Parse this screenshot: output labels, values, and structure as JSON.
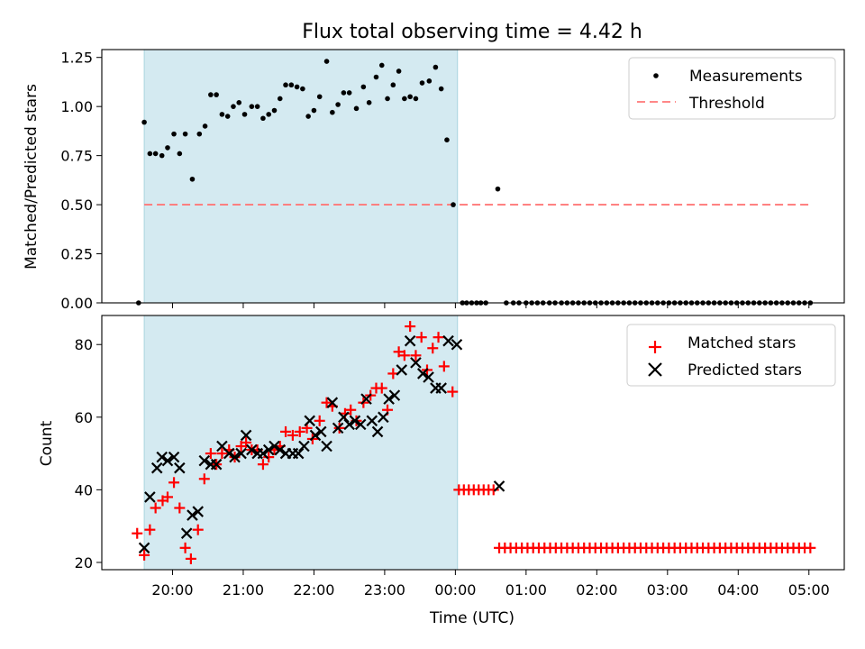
{
  "chart_data": {
    "type": "scatter",
    "title": "Flux total observing time = 4.42 h",
    "xlabel": "Time (UTC)",
    "x_tick_labels": [
      "20:00",
      "21:00",
      "22:00",
      "23:00",
      "00:00",
      "01:00",
      "02:00",
      "03:00",
      "04:00",
      "05:00"
    ],
    "x_tick_hours": [
      20,
      21,
      22,
      23,
      24,
      25,
      26,
      27,
      28,
      29
    ],
    "xlim_hours": [
      19.0,
      29.5
    ],
    "observing_window_hours": [
      19.6,
      24.03
    ],
    "colors": {
      "window": "#d4eaf1",
      "window_edge": "#a9d4df",
      "threshold": "#ff7777",
      "matched": "#ff0000",
      "predicted": "#000000",
      "measurement": "#000000"
    },
    "top_panel": {
      "ylabel": "Matched/Predicted stars",
      "ylim": [
        0,
        1.29
      ],
      "y_ticks": [
        0.0,
        0.25,
        0.5,
        0.75,
        1.0,
        1.25
      ],
      "y_tick_labels": [
        "0.00",
        "0.25",
        "0.50",
        "0.75",
        "1.00",
        "1.25"
      ],
      "threshold": 0.5,
      "threshold_x_hours": [
        19.6,
        29.05
      ],
      "legend": {
        "location": "upper right",
        "measurements": "Measurements",
        "threshold": "Threshold"
      },
      "measurements": [
        [
          19.52,
          0.0
        ],
        [
          19.6,
          0.92
        ],
        [
          19.68,
          0.76
        ],
        [
          19.76,
          0.76
        ],
        [
          19.85,
          0.75
        ],
        [
          19.93,
          0.79
        ],
        [
          20.02,
          0.86
        ],
        [
          20.1,
          0.76
        ],
        [
          20.18,
          0.86
        ],
        [
          20.28,
          0.63
        ],
        [
          20.38,
          0.86
        ],
        [
          20.46,
          0.9
        ],
        [
          20.54,
          1.06
        ],
        [
          20.62,
          1.06
        ],
        [
          20.7,
          0.96
        ],
        [
          20.78,
          0.95
        ],
        [
          20.86,
          1.0
        ],
        [
          20.94,
          1.02
        ],
        [
          21.02,
          0.96
        ],
        [
          21.12,
          1.0
        ],
        [
          21.2,
          1.0
        ],
        [
          21.28,
          0.94
        ],
        [
          21.36,
          0.96
        ],
        [
          21.44,
          0.98
        ],
        [
          21.52,
          1.04
        ],
        [
          21.6,
          1.11
        ],
        [
          21.68,
          1.11
        ],
        [
          21.76,
          1.1
        ],
        [
          21.84,
          1.09
        ],
        [
          21.92,
          0.95
        ],
        [
          22.0,
          0.98
        ],
        [
          22.08,
          1.05
        ],
        [
          22.18,
          1.23
        ],
        [
          22.26,
          0.97
        ],
        [
          22.34,
          1.01
        ],
        [
          22.42,
          1.07
        ],
        [
          22.5,
          1.07
        ],
        [
          22.6,
          0.99
        ],
        [
          22.7,
          1.1
        ],
        [
          22.78,
          1.02
        ],
        [
          22.88,
          1.15
        ],
        [
          22.96,
          1.21
        ],
        [
          23.04,
          1.04
        ],
        [
          23.12,
          1.11
        ],
        [
          23.2,
          1.18
        ],
        [
          23.28,
          1.04
        ],
        [
          23.36,
          1.05
        ],
        [
          23.44,
          1.04
        ],
        [
          23.53,
          1.12
        ],
        [
          23.63,
          1.13
        ],
        [
          23.72,
          1.2
        ],
        [
          23.8,
          1.09
        ],
        [
          23.88,
          0.83
        ],
        [
          23.97,
          0.5
        ],
        [
          24.1,
          0.0
        ],
        [
          24.16,
          0.0
        ],
        [
          24.23,
          0.0
        ],
        [
          24.3,
          0.0
        ],
        [
          24.36,
          0.0
        ],
        [
          24.43,
          0.0
        ],
        [
          24.6,
          0.58
        ],
        [
          24.72,
          0.0
        ],
        [
          24.82,
          0.0
        ],
        [
          24.9,
          0.0
        ],
        [
          25.0,
          0.0
        ],
        [
          25.08,
          0.0
        ],
        [
          25.16,
          0.0
        ],
        [
          25.24,
          0.0
        ],
        [
          25.33,
          0.0
        ],
        [
          25.41,
          0.0
        ],
        [
          25.5,
          0.0
        ],
        [
          25.58,
          0.0
        ],
        [
          25.66,
          0.0
        ],
        [
          25.74,
          0.0
        ],
        [
          25.82,
          0.0
        ],
        [
          25.9,
          0.0
        ],
        [
          25.98,
          0.0
        ],
        [
          26.06,
          0.0
        ],
        [
          26.14,
          0.0
        ],
        [
          26.22,
          0.0
        ],
        [
          26.3,
          0.0
        ],
        [
          26.38,
          0.0
        ],
        [
          26.46,
          0.0
        ],
        [
          26.54,
          0.0
        ],
        [
          26.62,
          0.0
        ],
        [
          26.7,
          0.0
        ],
        [
          26.78,
          0.0
        ],
        [
          26.86,
          0.0
        ],
        [
          26.94,
          0.0
        ],
        [
          27.02,
          0.0
        ],
        [
          27.1,
          0.0
        ],
        [
          27.18,
          0.0
        ],
        [
          27.26,
          0.0
        ],
        [
          27.34,
          0.0
        ],
        [
          27.42,
          0.0
        ],
        [
          27.5,
          0.0
        ],
        [
          27.58,
          0.0
        ],
        [
          27.66,
          0.0
        ],
        [
          27.74,
          0.0
        ],
        [
          27.82,
          0.0
        ],
        [
          27.9,
          0.0
        ],
        [
          27.98,
          0.0
        ],
        [
          28.06,
          0.0
        ],
        [
          28.14,
          0.0
        ],
        [
          28.22,
          0.0
        ],
        [
          28.3,
          0.0
        ],
        [
          28.38,
          0.0
        ],
        [
          28.46,
          0.0
        ],
        [
          28.54,
          0.0
        ],
        [
          28.62,
          0.0
        ],
        [
          28.7,
          0.0
        ],
        [
          28.78,
          0.0
        ],
        [
          28.86,
          0.0
        ],
        [
          28.94,
          0.0
        ],
        [
          29.02,
          0.0
        ]
      ]
    },
    "bottom_panel": {
      "ylabel": "Count",
      "ylim": [
        18,
        88
      ],
      "y_ticks": [
        20,
        40,
        60,
        80
      ],
      "y_tick_labels": [
        "20",
        "40",
        "60",
        "80"
      ],
      "legend": {
        "location": "upper right",
        "matched": "Matched stars",
        "predicted": "Predicted stars"
      },
      "matched": [
        [
          19.5,
          28
        ],
        [
          19.6,
          22
        ],
        [
          19.68,
          29
        ],
        [
          19.76,
          35
        ],
        [
          19.86,
          37
        ],
        [
          19.93,
          38
        ],
        [
          20.02,
          42
        ],
        [
          20.1,
          35
        ],
        [
          20.18,
          24
        ],
        [
          20.26,
          21
        ],
        [
          20.36,
          29
        ],
        [
          20.45,
          43
        ],
        [
          20.54,
          50
        ],
        [
          20.62,
          47
        ],
        [
          20.7,
          50
        ],
        [
          20.8,
          51
        ],
        [
          20.88,
          49
        ],
        [
          20.97,
          52
        ],
        [
          21.04,
          53
        ],
        [
          21.12,
          51
        ],
        [
          21.2,
          51
        ],
        [
          21.28,
          47
        ],
        [
          21.36,
          49
        ],
        [
          21.44,
          51
        ],
        [
          21.52,
          52
        ],
        [
          21.6,
          56
        ],
        [
          21.7,
          55
        ],
        [
          21.8,
          56
        ],
        [
          21.9,
          57
        ],
        [
          21.98,
          54
        ],
        [
          22.08,
          59
        ],
        [
          22.18,
          64
        ],
        [
          22.26,
          63
        ],
        [
          22.36,
          57
        ],
        [
          22.44,
          61
        ],
        [
          22.52,
          62
        ],
        [
          22.6,
          59
        ],
        [
          22.7,
          64
        ],
        [
          22.8,
          66
        ],
        [
          22.88,
          68
        ],
        [
          22.96,
          68
        ],
        [
          23.04,
          62
        ],
        [
          23.12,
          72
        ],
        [
          23.2,
          78
        ],
        [
          23.28,
          77
        ],
        [
          23.36,
          85
        ],
        [
          23.44,
          77
        ],
        [
          23.52,
          82
        ],
        [
          23.6,
          73
        ],
        [
          23.68,
          79
        ],
        [
          23.76,
          82
        ],
        [
          23.84,
          74
        ],
        [
          23.96,
          67
        ],
        [
          24.05,
          40
        ],
        [
          24.12,
          40
        ],
        [
          24.19,
          40
        ],
        [
          24.26,
          40
        ],
        [
          24.33,
          40
        ],
        [
          24.4,
          40
        ],
        [
          24.47,
          40
        ],
        [
          24.54,
          40
        ],
        [
          24.62,
          24
        ],
        [
          24.7,
          24
        ],
        [
          24.78,
          24
        ],
        [
          24.86,
          24
        ],
        [
          24.94,
          24
        ],
        [
          25.02,
          24
        ],
        [
          25.1,
          24
        ],
        [
          25.18,
          24
        ],
        [
          25.26,
          24
        ],
        [
          25.34,
          24
        ],
        [
          25.42,
          24
        ],
        [
          25.5,
          24
        ],
        [
          25.58,
          24
        ],
        [
          25.66,
          24
        ],
        [
          25.74,
          24
        ],
        [
          25.82,
          24
        ],
        [
          25.9,
          24
        ],
        [
          25.98,
          24
        ],
        [
          26.06,
          24
        ],
        [
          26.14,
          24
        ],
        [
          26.22,
          24
        ],
        [
          26.3,
          24
        ],
        [
          26.38,
          24
        ],
        [
          26.46,
          24
        ],
        [
          26.54,
          24
        ],
        [
          26.62,
          24
        ],
        [
          26.7,
          24
        ],
        [
          26.78,
          24
        ],
        [
          26.86,
          24
        ],
        [
          26.94,
          24
        ],
        [
          27.02,
          24
        ],
        [
          27.1,
          24
        ],
        [
          27.18,
          24
        ],
        [
          27.26,
          24
        ],
        [
          27.34,
          24
        ],
        [
          27.42,
          24
        ],
        [
          27.5,
          24
        ],
        [
          27.58,
          24
        ],
        [
          27.66,
          24
        ],
        [
          27.74,
          24
        ],
        [
          27.82,
          24
        ],
        [
          27.9,
          24
        ],
        [
          27.98,
          24
        ],
        [
          28.06,
          24
        ],
        [
          28.14,
          24
        ],
        [
          28.22,
          24
        ],
        [
          28.3,
          24
        ],
        [
          28.38,
          24
        ],
        [
          28.46,
          24
        ],
        [
          28.54,
          24
        ],
        [
          28.62,
          24
        ],
        [
          28.7,
          24
        ],
        [
          28.78,
          24
        ],
        [
          28.86,
          24
        ],
        [
          28.94,
          24
        ],
        [
          29.02,
          24
        ]
      ],
      "predicted": [
        [
          19.6,
          24
        ],
        [
          19.68,
          38
        ],
        [
          19.78,
          46
        ],
        [
          19.85,
          49
        ],
        [
          19.93,
          48
        ],
        [
          20.02,
          49
        ],
        [
          20.1,
          46
        ],
        [
          20.2,
          28
        ],
        [
          20.28,
          33
        ],
        [
          20.36,
          34
        ],
        [
          20.45,
          48
        ],
        [
          20.54,
          47
        ],
        [
          20.62,
          47
        ],
        [
          20.7,
          52
        ],
        [
          20.8,
          50
        ],
        [
          20.88,
          49
        ],
        [
          20.97,
          50
        ],
        [
          21.04,
          55
        ],
        [
          21.12,
          51
        ],
        [
          21.2,
          50
        ],
        [
          21.28,
          50
        ],
        [
          21.36,
          51
        ],
        [
          21.44,
          52
        ],
        [
          21.52,
          51
        ],
        [
          21.6,
          50
        ],
        [
          21.7,
          50
        ],
        [
          21.78,
          50
        ],
        [
          21.86,
          52
        ],
        [
          21.94,
          59
        ],
        [
          22.02,
          55
        ],
        [
          22.1,
          56
        ],
        [
          22.18,
          52
        ],
        [
          22.26,
          64
        ],
        [
          22.34,
          57
        ],
        [
          22.42,
          60
        ],
        [
          22.5,
          58
        ],
        [
          22.58,
          59
        ],
        [
          22.66,
          58
        ],
        [
          22.74,
          65
        ],
        [
          22.82,
          59
        ],
        [
          22.9,
          56
        ],
        [
          22.98,
          60
        ],
        [
          23.06,
          65
        ],
        [
          23.14,
          66
        ],
        [
          23.24,
          73
        ],
        [
          23.36,
          81
        ],
        [
          23.44,
          75
        ],
        [
          23.54,
          72
        ],
        [
          23.62,
          71
        ],
        [
          23.72,
          68
        ],
        [
          23.8,
          68
        ],
        [
          23.9,
          81
        ],
        [
          24.02,
          80
        ],
        [
          24.62,
          41
        ]
      ]
    }
  }
}
